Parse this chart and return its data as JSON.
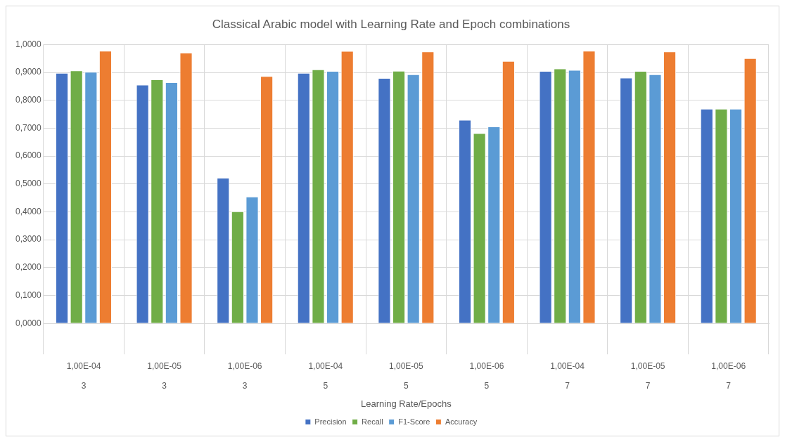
{
  "chart_data": {
    "type": "bar",
    "title": "Classical Arabic model with Learning Rate and Epoch combinations",
    "xlabel": "Learning Rate/Epochs",
    "categories": [
      "1,00E-04\n3",
      "1,00E-05\n3",
      "1,00E-06\n3",
      "1,00E-04\n5",
      "1,00E-05\n5",
      "1,00E-06\n5",
      "1,00E-04\n7",
      "1,00E-05\n7",
      "1,00E-06\n7"
    ],
    "series": [
      {
        "name": "Precision",
        "color": "#4472c4",
        "values": [
          0.898,
          0.856,
          0.522,
          0.898,
          0.88,
          0.73,
          0.905,
          0.881,
          0.77
        ]
      },
      {
        "name": "Recall",
        "color": "#70ad47",
        "values": [
          0.907,
          0.875,
          0.402,
          0.911,
          0.906,
          0.682,
          0.914,
          0.905,
          0.77
        ]
      },
      {
        "name": "F1-Score",
        "color": "#5b9bd5",
        "values": [
          0.902,
          0.865,
          0.455,
          0.905,
          0.893,
          0.706,
          0.909,
          0.893,
          0.77
        ]
      },
      {
        "name": "Accuracy",
        "color": "#ed7d31",
        "values": [
          0.978,
          0.971,
          0.887,
          0.977,
          0.975,
          0.941,
          0.978,
          0.975,
          0.951
        ]
      }
    ],
    "ylim": [
      0,
      1
    ],
    "yticks": [
      {
        "value": 0,
        "label": "0,0000"
      },
      {
        "value": 0.1,
        "label": "0,1000"
      },
      {
        "value": 0.2,
        "label": "0,2000"
      },
      {
        "value": 0.3,
        "label": "0,3000"
      },
      {
        "value": 0.4,
        "label": "0,4000"
      },
      {
        "value": 0.5,
        "label": "0,5000"
      },
      {
        "value": 0.6,
        "label": "0,6000"
      },
      {
        "value": 0.7,
        "label": "0,7000"
      },
      {
        "value": 0.8,
        "label": "0,8000"
      },
      {
        "value": 0.9,
        "label": "0,9000"
      },
      {
        "value": 1,
        "label": "1,0000"
      }
    ],
    "grid": true,
    "legend": "bottom"
  }
}
